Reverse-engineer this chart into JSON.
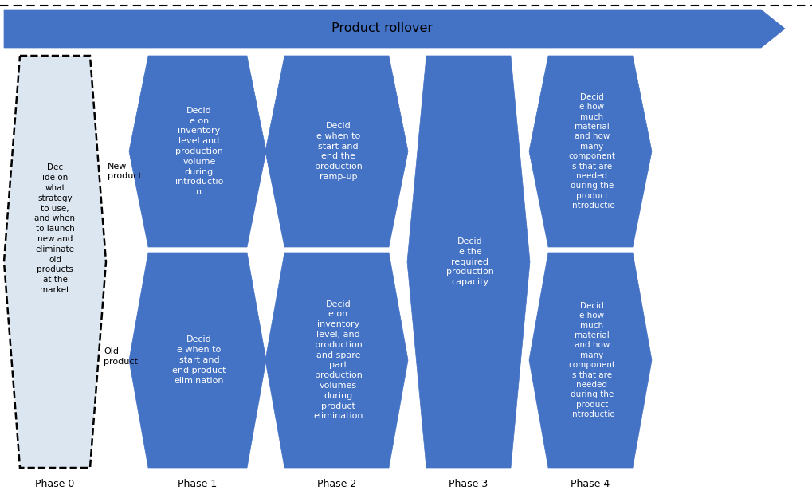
{
  "title": "Product rollover",
  "arrow_color": "#4472C4",
  "background": "#FFFFFF",
  "phase_labels": [
    "Phase 0",
    "Phase 1",
    "Phase 2",
    "Phase 3",
    "Phase 4"
  ],
  "phase0_text": "Dec\nide on\nwhat\nstrategy\nto use,\nand when\nto launch\nnew and\neliminate\nold\nproducts\nat the\nmarket",
  "new_product_label": "New\nproduct",
  "old_product_label": "Old\nproduct",
  "phase1_top": "Decid\ne on\ninventory\nlevel and\nproduction\nvolume\nduring\nintroductio\nn",
  "phase1_bot": "Decid\ne when to\nstart and\nend product\nelimination",
  "phase2_top": "Decid\ne when to\nstart and\nend the\nproduction\nramp-up",
  "phase2_bot": "Decid\ne on\ninventory\nlevel, and\nproduction\nand spare\npart\nproduction\nvolumes\nduring\nproduct\nelimination",
  "phase3": "Decid\ne the\nrequired\nproduction\ncapacity",
  "phase4_top": "Decid\ne how\nmuch\nmaterial\nand how\nmany\ncomponent\ns that are\nneeded\nduring the\nproduct\nintroductio",
  "phase4_bot": "Decid\ne how\nmuch\nmaterial\nand how\nmany\ncomponent\ns that are\nneeded\nduring the\nproduct\nintroductio"
}
